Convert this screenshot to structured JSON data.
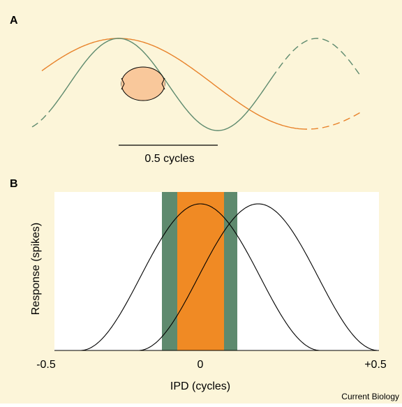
{
  "panel_a": {
    "label": "A",
    "scale_bar": "0.5 cycles"
  },
  "panel_b": {
    "label": "B",
    "y_axis_label": "Response (spikes)",
    "x_axis_label": "IPD (cycles)",
    "x_tick_labels": [
      "-0.5",
      "0",
      "+0.5"
    ]
  },
  "footer": "Current Biology"
}
